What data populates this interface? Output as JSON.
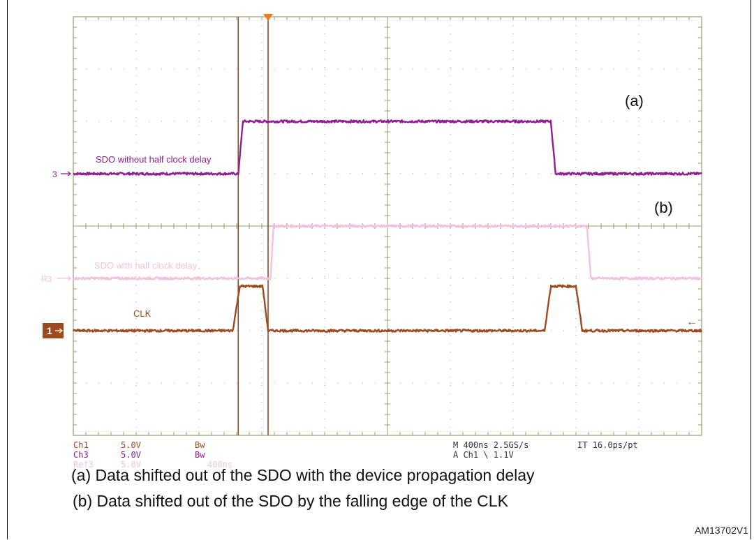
{
  "chart_data": {
    "type": "line",
    "title": "",
    "xlabel": "",
    "ylabel": "",
    "time_per_div_ns": 400,
    "divisions_x": 10,
    "divisions_y": 8,
    "grid": true,
    "x_unit": "ns",
    "series": [
      {
        "name": "SDO without half clock delay",
        "channel_marker": "3",
        "color": "#8e1f8e",
        "baseline_div": 1.0,
        "high_div": 2.0,
        "points": [
          [
            0,
            0
          ],
          [
            1050,
            0
          ],
          [
            1080,
            1
          ],
          [
            3040,
            1
          ],
          [
            3070,
            0
          ],
          [
            4000,
            0
          ]
        ]
      },
      {
        "name": "SDO with half clock delay",
        "channel_marker": "R3",
        "color": "#f0c2e0",
        "baseline_div": -1.0,
        "high_div": 0.0,
        "points": [
          [
            0,
            0
          ],
          [
            1255,
            0
          ],
          [
            1275,
            1
          ],
          [
            3270,
            1
          ],
          [
            3295,
            0
          ],
          [
            4000,
            0
          ]
        ]
      },
      {
        "name": "CLK",
        "channel_marker": "1",
        "color": "#9c4a1e",
        "baseline_div": -2.0,
        "high_div": -1.15,
        "points": [
          [
            0,
            0
          ],
          [
            1015,
            0
          ],
          [
            1060,
            1
          ],
          [
            1205,
            1
          ],
          [
            1240,
            0
          ],
          [
            3000,
            0
          ],
          [
            3040,
            1
          ],
          [
            3200,
            1
          ],
          [
            3240,
            0
          ],
          [
            4000,
            0
          ]
        ]
      }
    ],
    "cursors_ns": [
      1050,
      1240
    ],
    "trigger_marker_ns": 1240,
    "annotations": [
      "(a)",
      "(b)"
    ],
    "readout": {
      "left": [
        [
          "Ch1",
          "5.0V",
          "Bw",
          ""
        ],
        [
          "Ch3",
          "5.0V",
          "Bw",
          ""
        ],
        [
          "Ref3",
          "5.0V",
          "",
          "400ns"
        ]
      ],
      "right": [
        [
          "M 400ns 2.5GS/s",
          "IT 16.0ps/pt"
        ],
        [
          "A  Ch1  \\  1.1V",
          ""
        ]
      ]
    },
    "colors": {
      "ch1": "#9c4a1e",
      "ch3": "#8e1f8e",
      "ref3": "#f0c2e0",
      "grid": "#9a9a6a",
      "cursor": "#8b4a2b",
      "trigger": "#f07a1e"
    }
  },
  "captions": [
    "(a) Data shifted out of the SDO with the device propagation delay",
    "(b) Data shifted out of the SDO by the falling edge of the CLK"
  ],
  "figure_id": "AM13702V1",
  "ch1_arrow": "←"
}
